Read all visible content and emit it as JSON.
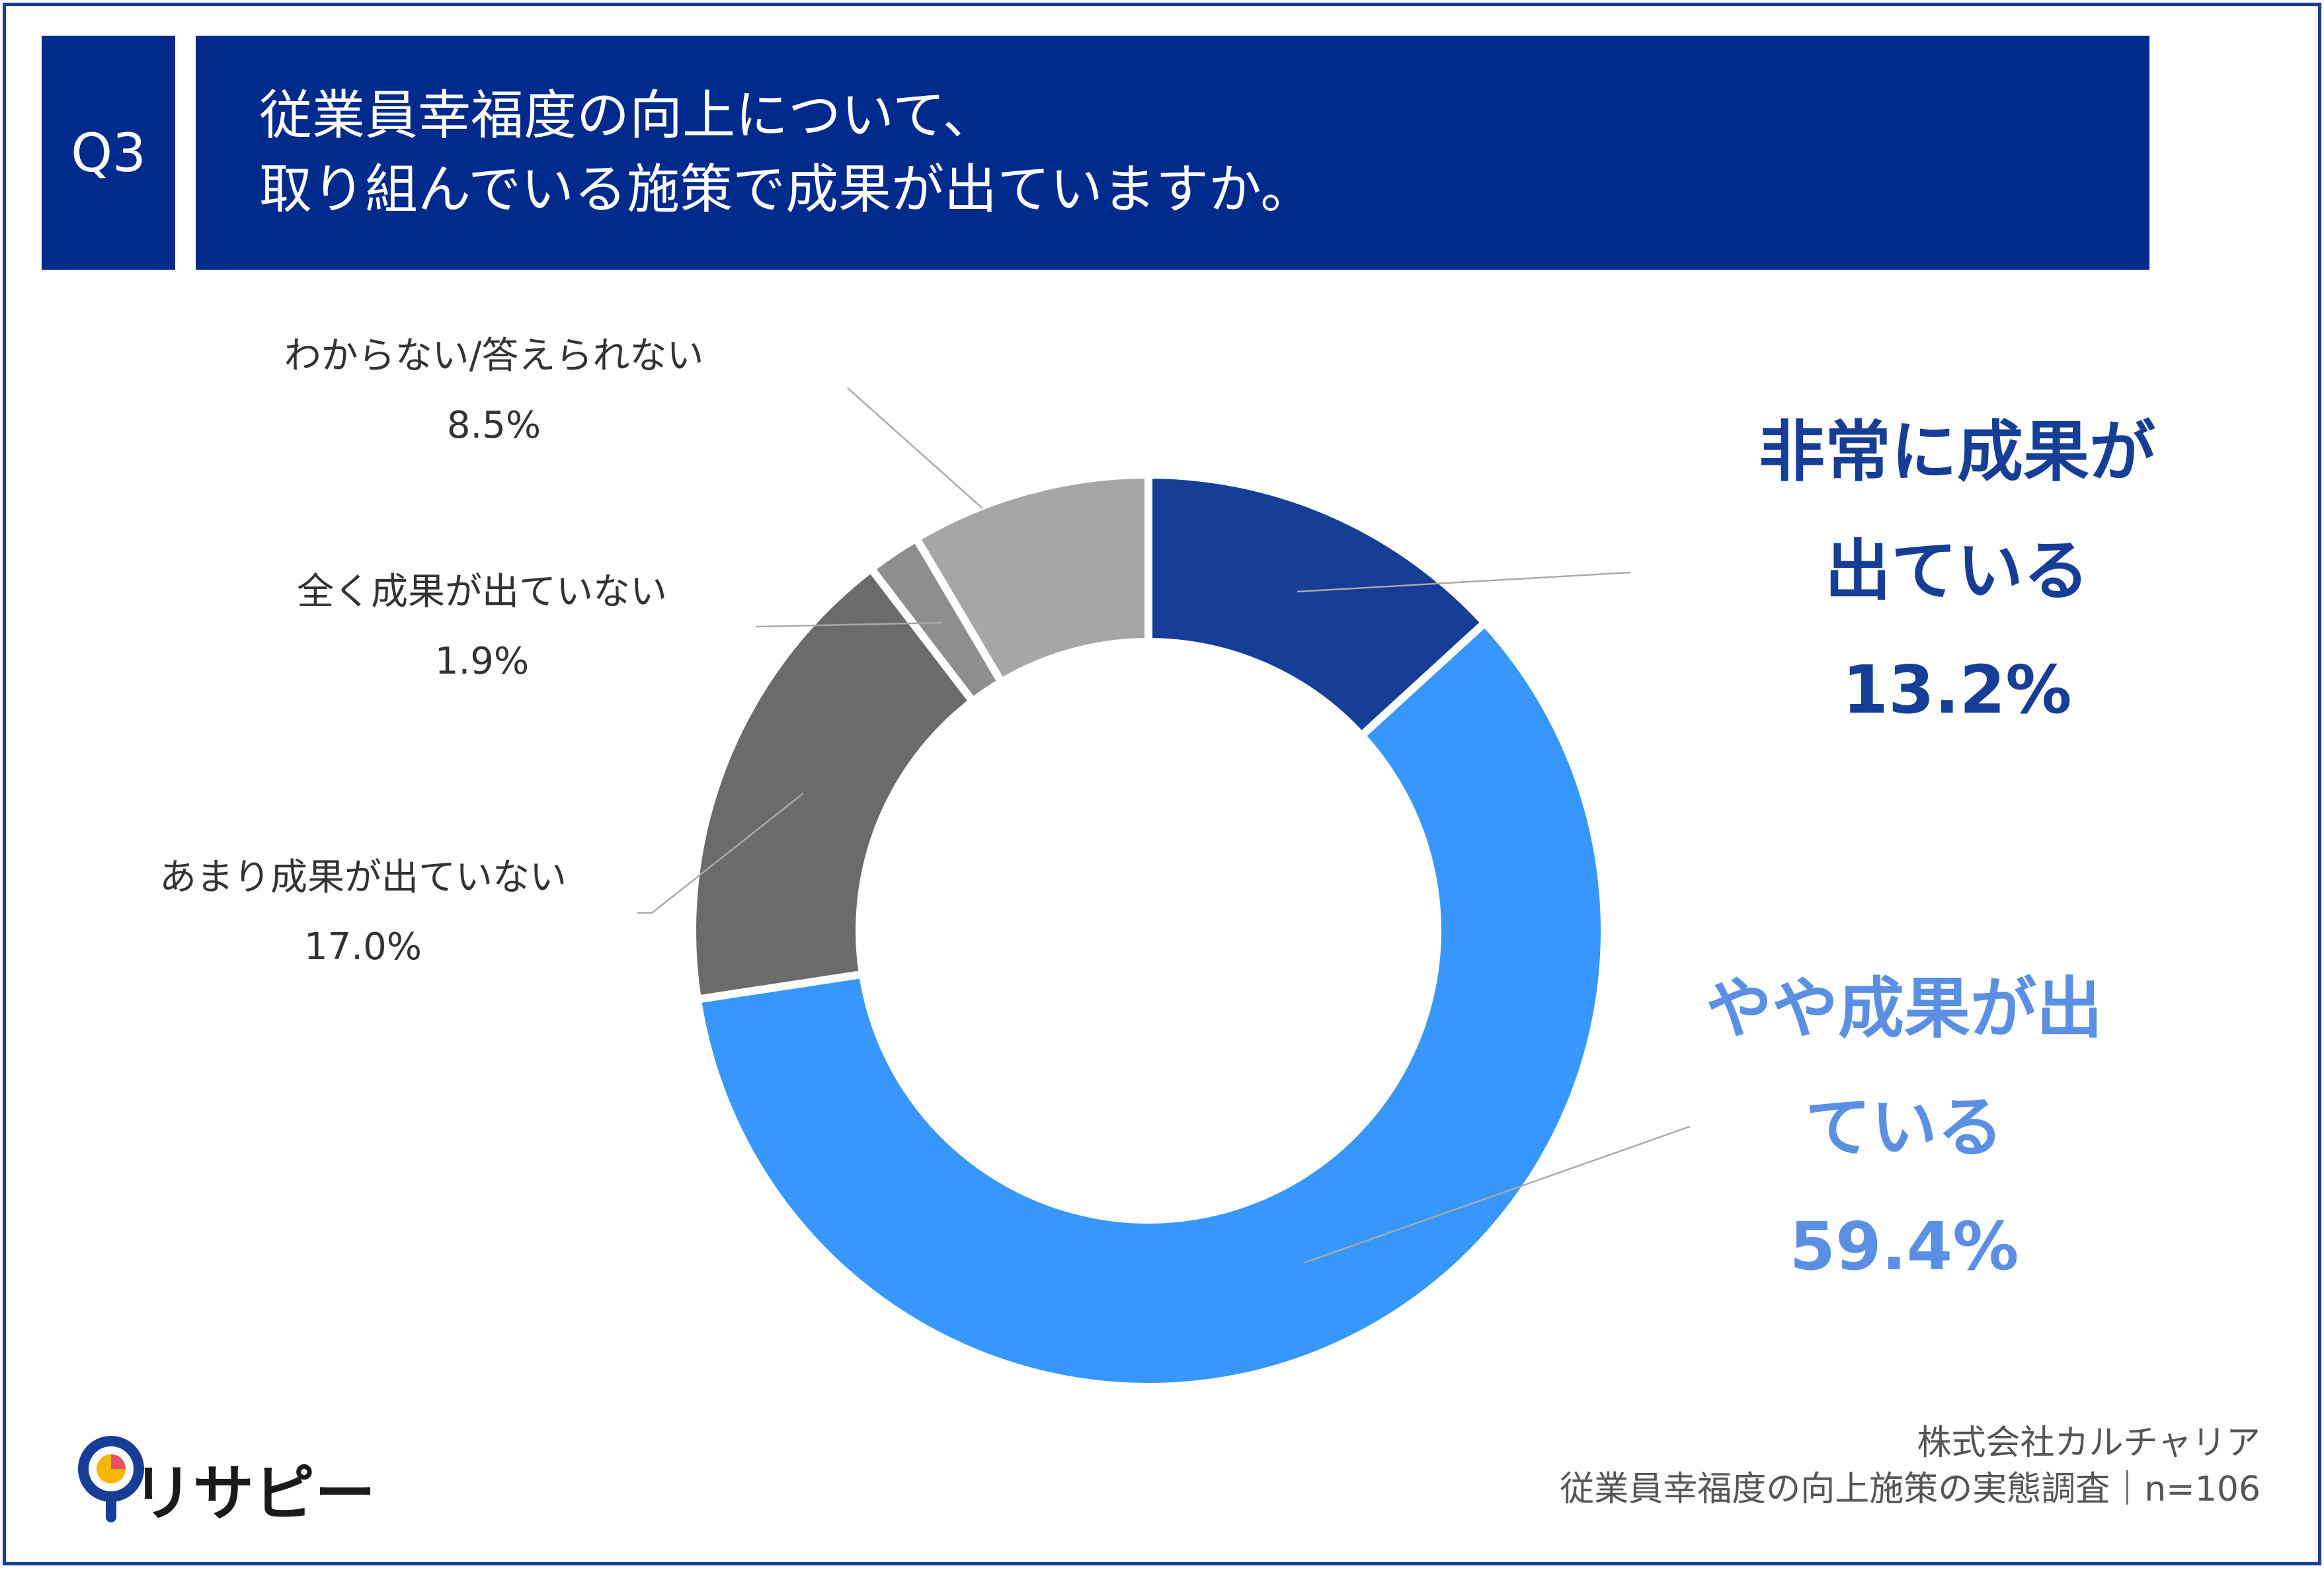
{
  "header": {
    "badge": "Q3",
    "title_lines": [
      "従業員幸福度の向上について、",
      "取り組んでいる施策で成果が出ていますか。"
    ]
  },
  "chart_data": {
    "type": "donut",
    "categories": [
      "非常に成果が出ている",
      "やや成果が出ている",
      "あまり成果が出ていない",
      "全く成果が出ていない",
      "わからない/答えられない"
    ],
    "values": [
      13.2,
      59.4,
      17.0,
      1.9,
      8.5
    ],
    "value_labels": [
      "13.2%",
      "59.4%",
      "17.0%",
      "1.9%",
      "8.5%"
    ],
    "colors": [
      "#163e96",
      "#3797fc",
      "#6b6b6b",
      "#8e8e8e",
      "#a6a6a6"
    ],
    "label_colors": [
      "#163e96",
      "#5b8fe3",
      "#333333",
      "#333333",
      "#333333"
    ]
  },
  "source": [
    "株式会社カルチャリア",
    "従業員幸福度の向上施策の実態調査｜n=106"
  ],
  "logo": "リサピー"
}
